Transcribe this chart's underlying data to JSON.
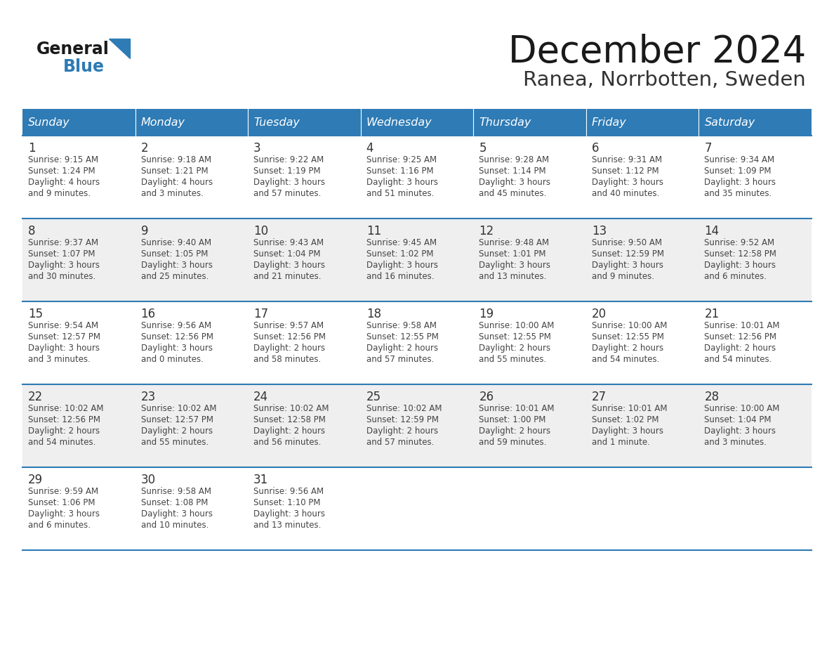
{
  "title": "December 2024",
  "subtitle": "Ranea, Norrbotten, Sweden",
  "days_of_week": [
    "Sunday",
    "Monday",
    "Tuesday",
    "Wednesday",
    "Thursday",
    "Friday",
    "Saturday"
  ],
  "header_bg": "#2E7BB5",
  "header_text": "#FFFFFF",
  "day_num_color": "#333333",
  "cell_text_color": "#444444",
  "cell_bg_odd": "#FFFFFF",
  "cell_bg_even": "#EFEFEF",
  "separator_color": "#2E7BB5",
  "title_color": "#1a1a1a",
  "subtitle_color": "#333333",
  "logo_general_color": "#1a1a1a",
  "logo_blue_color": "#2E7BB5",
  "weeks": [
    [
      {
        "day": 1,
        "sunrise": "9:15 AM",
        "sunset": "1:24 PM",
        "daylight": "4 hours",
        "daylight2": "and 9 minutes."
      },
      {
        "day": 2,
        "sunrise": "9:18 AM",
        "sunset": "1:21 PM",
        "daylight": "4 hours",
        "daylight2": "and 3 minutes."
      },
      {
        "day": 3,
        "sunrise": "9:22 AM",
        "sunset": "1:19 PM",
        "daylight": "3 hours",
        "daylight2": "and 57 minutes."
      },
      {
        "day": 4,
        "sunrise": "9:25 AM",
        "sunset": "1:16 PM",
        "daylight": "3 hours",
        "daylight2": "and 51 minutes."
      },
      {
        "day": 5,
        "sunrise": "9:28 AM",
        "sunset": "1:14 PM",
        "daylight": "3 hours",
        "daylight2": "and 45 minutes."
      },
      {
        "day": 6,
        "sunrise": "9:31 AM",
        "sunset": "1:12 PM",
        "daylight": "3 hours",
        "daylight2": "and 40 minutes."
      },
      {
        "day": 7,
        "sunrise": "9:34 AM",
        "sunset": "1:09 PM",
        "daylight": "3 hours",
        "daylight2": "and 35 minutes."
      }
    ],
    [
      {
        "day": 8,
        "sunrise": "9:37 AM",
        "sunset": "1:07 PM",
        "daylight": "3 hours",
        "daylight2": "and 30 minutes."
      },
      {
        "day": 9,
        "sunrise": "9:40 AM",
        "sunset": "1:05 PM",
        "daylight": "3 hours",
        "daylight2": "and 25 minutes."
      },
      {
        "day": 10,
        "sunrise": "9:43 AM",
        "sunset": "1:04 PM",
        "daylight": "3 hours",
        "daylight2": "and 21 minutes."
      },
      {
        "day": 11,
        "sunrise": "9:45 AM",
        "sunset": "1:02 PM",
        "daylight": "3 hours",
        "daylight2": "and 16 minutes."
      },
      {
        "day": 12,
        "sunrise": "9:48 AM",
        "sunset": "1:01 PM",
        "daylight": "3 hours",
        "daylight2": "and 13 minutes."
      },
      {
        "day": 13,
        "sunrise": "9:50 AM",
        "sunset": "12:59 PM",
        "daylight": "3 hours",
        "daylight2": "and 9 minutes."
      },
      {
        "day": 14,
        "sunrise": "9:52 AM",
        "sunset": "12:58 PM",
        "daylight": "3 hours",
        "daylight2": "and 6 minutes."
      }
    ],
    [
      {
        "day": 15,
        "sunrise": "9:54 AM",
        "sunset": "12:57 PM",
        "daylight": "3 hours",
        "daylight2": "and 3 minutes."
      },
      {
        "day": 16,
        "sunrise": "9:56 AM",
        "sunset": "12:56 PM",
        "daylight": "3 hours",
        "daylight2": "and 0 minutes."
      },
      {
        "day": 17,
        "sunrise": "9:57 AM",
        "sunset": "12:56 PM",
        "daylight": "2 hours",
        "daylight2": "and 58 minutes."
      },
      {
        "day": 18,
        "sunrise": "9:58 AM",
        "sunset": "12:55 PM",
        "daylight": "2 hours",
        "daylight2": "and 57 minutes."
      },
      {
        "day": 19,
        "sunrise": "10:00 AM",
        "sunset": "12:55 PM",
        "daylight": "2 hours",
        "daylight2": "and 55 minutes."
      },
      {
        "day": 20,
        "sunrise": "10:00 AM",
        "sunset": "12:55 PM",
        "daylight": "2 hours",
        "daylight2": "and 54 minutes."
      },
      {
        "day": 21,
        "sunrise": "10:01 AM",
        "sunset": "12:56 PM",
        "daylight": "2 hours",
        "daylight2": "and 54 minutes."
      }
    ],
    [
      {
        "day": 22,
        "sunrise": "10:02 AM",
        "sunset": "12:56 PM",
        "daylight": "2 hours",
        "daylight2": "and 54 minutes."
      },
      {
        "day": 23,
        "sunrise": "10:02 AM",
        "sunset": "12:57 PM",
        "daylight": "2 hours",
        "daylight2": "and 55 minutes."
      },
      {
        "day": 24,
        "sunrise": "10:02 AM",
        "sunset": "12:58 PM",
        "daylight": "2 hours",
        "daylight2": "and 56 minutes."
      },
      {
        "day": 25,
        "sunrise": "10:02 AM",
        "sunset": "12:59 PM",
        "daylight": "2 hours",
        "daylight2": "and 57 minutes."
      },
      {
        "day": 26,
        "sunrise": "10:01 AM",
        "sunset": "1:00 PM",
        "daylight": "2 hours",
        "daylight2": "and 59 minutes."
      },
      {
        "day": 27,
        "sunrise": "10:01 AM",
        "sunset": "1:02 PM",
        "daylight": "3 hours",
        "daylight2": "and 1 minute."
      },
      {
        "day": 28,
        "sunrise": "10:00 AM",
        "sunset": "1:04 PM",
        "daylight": "3 hours",
        "daylight2": "and 3 minutes."
      }
    ],
    [
      {
        "day": 29,
        "sunrise": "9:59 AM",
        "sunset": "1:06 PM",
        "daylight": "3 hours",
        "daylight2": "and 6 minutes."
      },
      {
        "day": 30,
        "sunrise": "9:58 AM",
        "sunset": "1:08 PM",
        "daylight": "3 hours",
        "daylight2": "and 10 minutes."
      },
      {
        "day": 31,
        "sunrise": "9:56 AM",
        "sunset": "1:10 PM",
        "daylight": "3 hours",
        "daylight2": "and 13 minutes."
      },
      null,
      null,
      null,
      null
    ]
  ]
}
